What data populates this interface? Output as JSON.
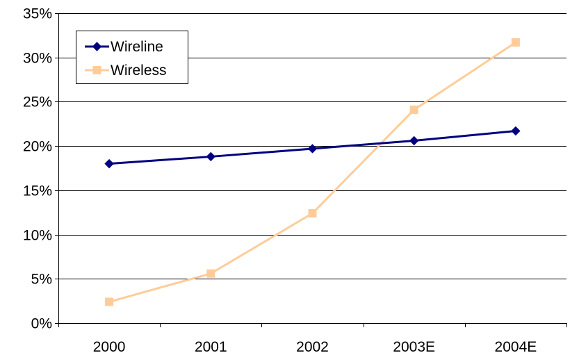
{
  "chart_data": {
    "type": "line",
    "title": "",
    "xlabel": "",
    "ylabel": "",
    "categories": [
      "2000",
      "2001",
      "2002",
      "2003E",
      "2004E"
    ],
    "ylim": [
      0,
      35
    ],
    "ytick_values": [
      0,
      5,
      10,
      15,
      20,
      25,
      30,
      35
    ],
    "ytick_labels": [
      "0%",
      "5%",
      "10%",
      "15%",
      "20%",
      "25%",
      "30%",
      "35%"
    ],
    "value_unit": "%",
    "grid": "horizontal",
    "legend_position": "top-left",
    "series": [
      {
        "name": "Wireline",
        "values": [
          18.0,
          18.8,
          19.7,
          20.6,
          21.7
        ],
        "color": "#000080",
        "marker": "diamond"
      },
      {
        "name": "Wireless",
        "values": [
          2.4,
          5.6,
          12.4,
          24.1,
          31.7
        ],
        "color": "#FFCC99",
        "marker": "square"
      }
    ]
  }
}
